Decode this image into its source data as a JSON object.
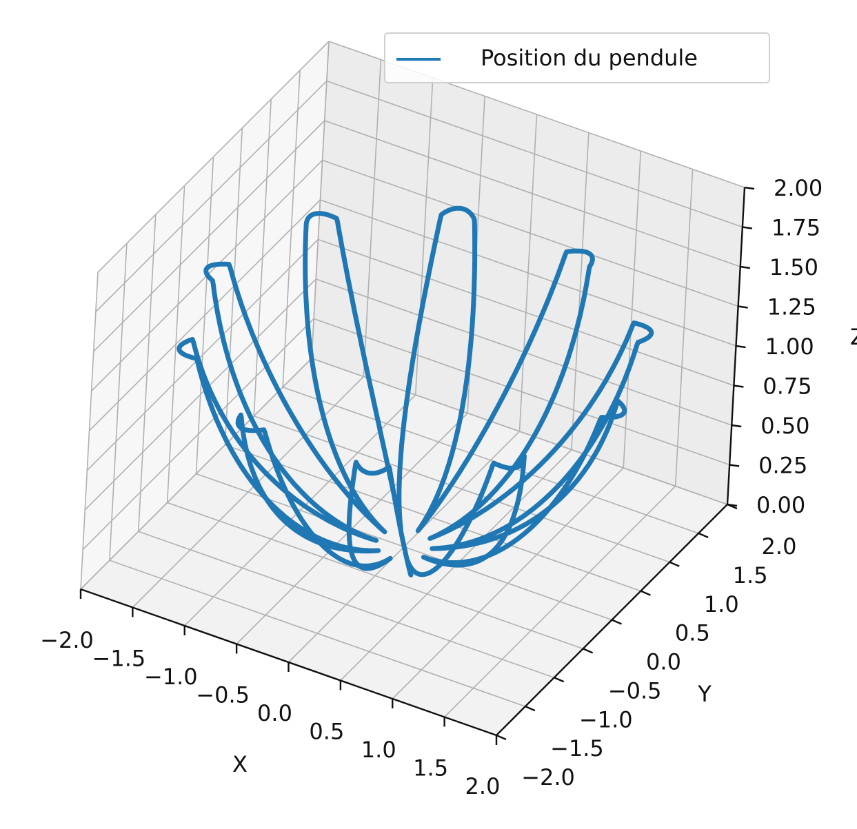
{
  "chart_data": {
    "type": "line3d",
    "title": "",
    "xlabel": "X",
    "ylabel": "Y",
    "zlabel": "Z",
    "xlim": [
      -2.0,
      2.0
    ],
    "ylim": [
      -2.0,
      2.0
    ],
    "zlim": [
      0.0,
      2.0
    ],
    "xticks": [
      "−2.0",
      "−1.5",
      "−1.0",
      "−0.5",
      "0.0",
      "0.5",
      "1.0",
      "1.5",
      "2.0"
    ],
    "yticks": [
      "−2.0",
      "−1.5",
      "−1.0",
      "−0.5",
      "0.0",
      "0.5",
      "1.0",
      "1.5",
      "2.0"
    ],
    "zticks": [
      "0.00",
      "0.25",
      "0.50",
      "0.75",
      "1.00",
      "1.25",
      "1.50",
      "1.75",
      "2.00"
    ],
    "grid": true,
    "legend": "top-right",
    "series": [
      {
        "name": "Position du pendule",
        "color": "#1f77b4",
        "description_of_shape": "",
        "trajectory": {
          "z_min": 0.0,
          "z_max": 1.3,
          "radius_max": 2.0,
          "lobes": 10
        }
      }
    ]
  }
}
